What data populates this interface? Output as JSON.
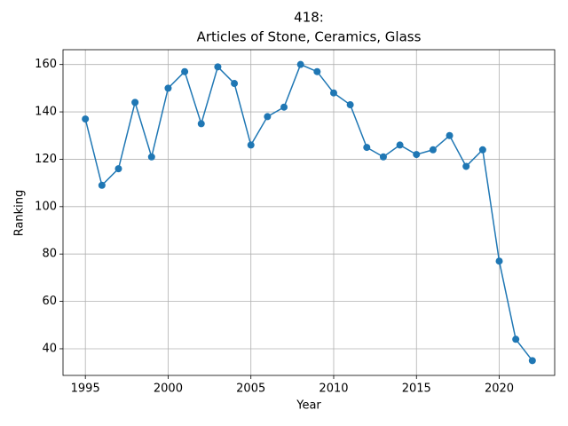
{
  "chart_data": {
    "type": "line",
    "title": [
      "418:",
      "Articles of Stone, Ceramics, Glass"
    ],
    "x_label": "Year",
    "y_label": "Ranking",
    "x": [
      1995,
      1996,
      1997,
      1998,
      1999,
      2000,
      2001,
      2002,
      2003,
      2004,
      2005,
      2006,
      2007,
      2008,
      2009,
      2010,
      2011,
      2012,
      2013,
      2014,
      2015,
      2016,
      2017,
      2018,
      2019,
      2020,
      2021,
      2022
    ],
    "values": [
      137,
      109,
      116,
      144,
      121,
      150,
      157,
      135,
      159,
      152,
      126,
      138,
      142,
      160,
      157,
      148,
      143,
      125,
      121,
      126,
      122,
      124,
      130,
      117,
      124,
      77,
      44,
      35
    ],
    "color": "#1f77b4",
    "xlim": [
      1993.65,
      2023.35
    ],
    "xticks": [
      1995,
      2000,
      2005,
      2010,
      2015,
      2020
    ],
    "ylim": [
      28.75,
      166.25
    ],
    "yticks": [
      40,
      60,
      80,
      100,
      120,
      140,
      160
    ],
    "grid": true,
    "markers": true
  }
}
